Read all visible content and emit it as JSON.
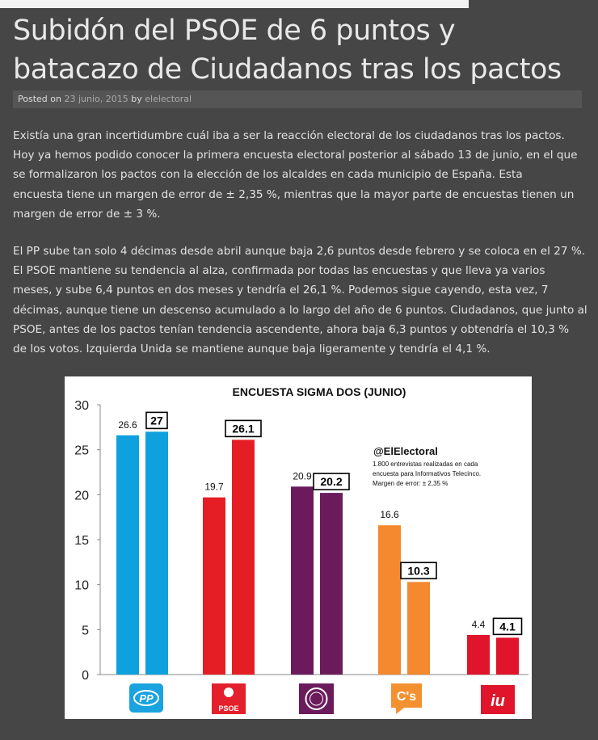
{
  "article": {
    "title_line1": "Subidón del PSOE de 6 puntos y",
    "title_line2": "batacazo de Ciudadanos tras los pactos",
    "meta": {
      "posted_on": "Posted on",
      "date": "23 junio, 2015",
      "by": "by",
      "author": "elelectoral"
    },
    "para1": [
      "Existía una gran incertidumbre cuál iba a ser la reacción electoral de los ciudadanos tras los pactos.",
      "Hoy ya hemos podido conocer la primera encuesta electoral posterior al sábado 13 de junio, en el que",
      "se formalizaron los pactos con la elección de los alcaldes en cada municipio de España. Esta",
      "encuesta tiene un margen de error de ± 2,35 %, mientras que la mayor parte de encuestas tienen un",
      "margen de error de ± 3 %."
    ],
    "para2": [
      "El PP sube tan solo 4 décimas desde abril aunque baja 2,6 puntos desde febrero y se coloca en el 27 %.",
      "El PSOE mantiene su tendencia al alza, confirmada por todas las encuestas y que lleva ya varios",
      "meses, y sube 6,4 puntos en dos meses y tendría el 26,1 %. Podemos sigue cayendo, esta vez, 7",
      "décimas, aunque tiene un descenso acumulado a lo largo del año de 6 puntos. Ciudadanos, que junto al",
      "PSOE, antes de los pactos tenían tendencia ascendente, ahora baja 6,3 puntos y obtendría el 10,3 %",
      "de los votos. Izquierda Unida se mantiene aunque baja ligeramente y tendría el 4,1 %."
    ]
  },
  "chart_data": {
    "type": "bar",
    "title": "ENCUESTA SIGMA DOS (JUNIO)",
    "categories": [
      "PP",
      "PSOE",
      "Podemos",
      "C's",
      "IU"
    ],
    "series": [
      {
        "values": [
          26.6,
          19.7,
          20.9,
          16.6,
          4.4
        ]
      },
      {
        "values": [
          27,
          26.1,
          20.2,
          10.3,
          4.1
        ]
      }
    ],
    "value_labels": [
      [
        "26.6",
        "19.7",
        "20.9",
        "16.6",
        "4.4"
      ],
      [
        "27",
        "26.1",
        "20.2",
        "10.3",
        "4.1"
      ]
    ],
    "colors": [
      [
        "#0fa1dd",
        "#0fa1dd"
      ],
      [
        "#e51e25",
        "#e51e25"
      ],
      [
        "#6b1b5c",
        "#6b1b5c"
      ],
      [
        "#f4892f",
        "#f4892f"
      ],
      [
        "#e0142a",
        "#e0142a"
      ]
    ],
    "ylim": [
      0,
      30
    ],
    "yticks": [
      "0",
      "5",
      "10",
      "15",
      "20",
      "25",
      "30"
    ],
    "ytick_values": [
      0,
      5,
      10,
      15,
      20,
      25,
      30
    ],
    "grid": false,
    "legend": "none",
    "annotation": {
      "handle": "@ElElectoral",
      "lines": [
        "1.800 entrevistas realizadas en cada",
        "encuesta para Informativos Telecinco.",
        "Margen de error: ± 2,35 %"
      ]
    }
  },
  "logos": {
    "pp": "PP",
    "psoe": "PSOE",
    "cs": "C's",
    "iu": "iu",
    "pp_color": "#1aa3de",
    "psoe_color": "#e3202b",
    "podemos_color": "#6b1b5c",
    "cs_color": "#f39131",
    "iu_color": "#e0142a"
  }
}
